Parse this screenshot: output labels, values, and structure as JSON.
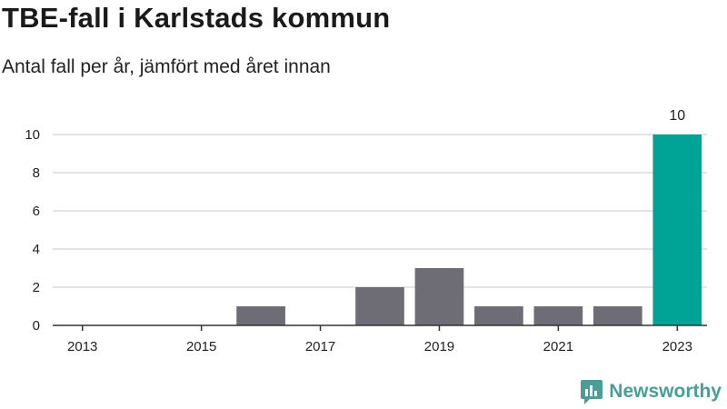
{
  "header": {
    "title": "TBE-fall i Karlstads kommun",
    "subtitle": "Antal fall per år, jämfört med året innan"
  },
  "brand": {
    "name": "Newsworthy",
    "icon": "newsworthy-logo-icon",
    "color": "#4a9e98"
  },
  "colors": {
    "bar": "#6e6d75",
    "highlight": "#00a497",
    "grid": "#dcdcdc",
    "axis": "#333333"
  },
  "chart_data": {
    "type": "bar",
    "title": "TBE-fall i Karlstads kommun",
    "subtitle": "Antal fall per år, jämfört med året innan",
    "xlabel": "",
    "ylabel": "",
    "categories": [
      "2013",
      "2014",
      "2015",
      "2016",
      "2017",
      "2018",
      "2019",
      "2020",
      "2021",
      "2022",
      "2023"
    ],
    "x_tick_labels": [
      "2013",
      "2015",
      "2017",
      "2019",
      "2021",
      "2023"
    ],
    "values": [
      0,
      0,
      0,
      1,
      0,
      2,
      3,
      1,
      1,
      1,
      10
    ],
    "highlight_index": 10,
    "data_labels": [
      {
        "category": "2023",
        "text": "10"
      }
    ],
    "ylim": [
      0,
      10
    ],
    "y_ticks": [
      0,
      2,
      4,
      6,
      8,
      10
    ],
    "grid": true
  }
}
